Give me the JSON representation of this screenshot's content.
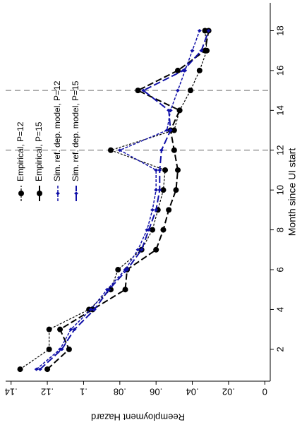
{
  "chart_data": {
    "type": "line",
    "rotated": true,
    "x_label": "Month since UI start",
    "y_label": "Reemployment Hazard",
    "x": [
      1,
      2,
      3,
      4,
      5,
      6,
      7,
      8,
      9,
      10,
      11,
      12,
      13,
      14,
      15,
      16,
      17,
      18
    ],
    "series": [
      {
        "name": "Empirical, P=12",
        "color": "#000000",
        "dash": "3,2",
        "width": 1.2,
        "marker": "circle",
        "values": [
          0.135,
          0.119,
          0.119,
          0.097,
          0.085,
          0.081,
          0.068,
          0.062,
          0.059,
          0.056,
          0.055,
          0.085,
          0.05,
          0.047,
          0.041,
          0.036,
          0.032,
          0.033
        ]
      },
      {
        "name": "Empirical, P=15",
        "color": "#000000",
        "dash": "9,4",
        "width": 2,
        "marker": "circle",
        "values": [
          0.12,
          0.108,
          0.113,
          0.095,
          0.077,
          0.076,
          0.06,
          0.056,
          0.053,
          0.049,
          0.048,
          0.05,
          0.052,
          0.047,
          0.07,
          0.048,
          0.033,
          0.031
        ]
      },
      {
        "name": "Sim. ref. dep. model, P=12",
        "color": "#1010a8",
        "dash": "4,2",
        "width": 1.5,
        "marker": "diamond",
        "values": [
          0.126,
          0.113,
          0.107,
          0.096,
          0.087,
          0.077,
          0.07,
          0.065,
          0.062,
          0.06,
          0.06,
          0.08,
          0.054,
          0.052,
          0.048,
          0.044,
          0.04,
          0.036
        ]
      },
      {
        "name": "Sim. ref. dep. model, P=15",
        "color": "#1010a8",
        "dash": "10,4",
        "width": 2,
        "marker": "diamond",
        "values": [
          0.124,
          0.112,
          0.105,
          0.094,
          0.086,
          0.076,
          0.068,
          0.064,
          0.06,
          0.058,
          0.058,
          0.057,
          0.052,
          0.053,
          0.067,
          0.045,
          0.035,
          0.031
        ]
      }
    ],
    "xlim": [
      0.4,
      19.4
    ],
    "xticks": [
      2,
      4,
      6,
      8,
      10,
      12,
      14,
      16,
      18
    ],
    "ylim": [
      -0.003,
      0.143
    ],
    "yticks": [
      0,
      {
        "value": 0.02,
        "label": ".02"
      },
      {
        "value": 0.04,
        "label": ".04"
      },
      {
        "value": 0.06,
        "label": ".06"
      },
      {
        "value": 0.08,
        "label": ".08"
      },
      {
        "value": 0.1,
        "label": ".1"
      },
      {
        "value": 0.12,
        "label": ".12"
      },
      {
        "value": 0.14,
        "label": ".14"
      }
    ],
    "vlines": [
      12,
      15
    ],
    "vline_color": "#888888"
  }
}
